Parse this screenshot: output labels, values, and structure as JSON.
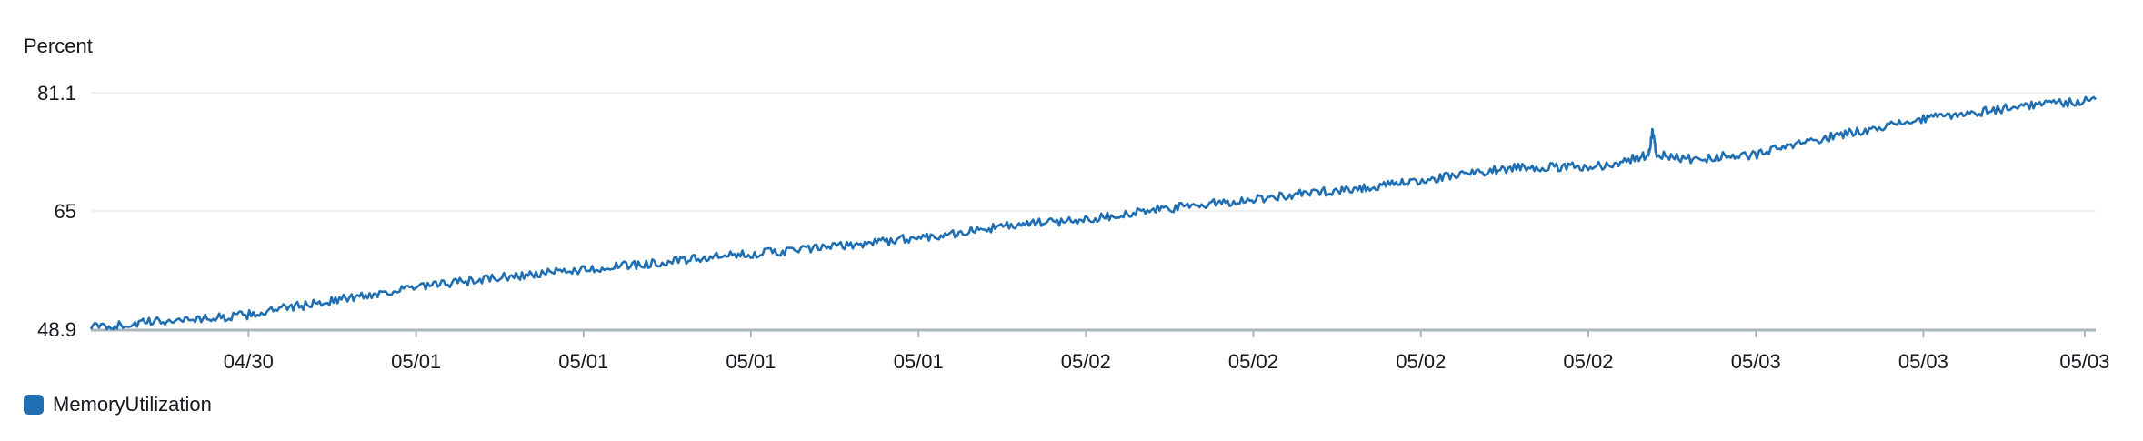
{
  "chart_data": {
    "type": "line",
    "ylabel": "Percent",
    "ylim": [
      48.9,
      81.1
    ],
    "yticks": [
      {
        "value": 48.9,
        "label": "48.9"
      },
      {
        "value": 65,
        "label": "65"
      },
      {
        "value": 81.1,
        "label": "81.1"
      }
    ],
    "xlim": [
      0,
      1
    ],
    "xticks": [
      {
        "x": 0.0786,
        "label": "04/30"
      },
      {
        "x": 0.1622,
        "label": "05/01"
      },
      {
        "x": 0.2457,
        "label": "05/01"
      },
      {
        "x": 0.3292,
        "label": "05/01"
      },
      {
        "x": 0.4128,
        "label": "05/01"
      },
      {
        "x": 0.4963,
        "label": "05/02"
      },
      {
        "x": 0.5798,
        "label": "05/02"
      },
      {
        "x": 0.6634,
        "label": "05/02"
      },
      {
        "x": 0.7469,
        "label": "05/02"
      },
      {
        "x": 0.8305,
        "label": "05/03"
      },
      {
        "x": 0.914,
        "label": "05/03"
      },
      {
        "x": 0.9945,
        "label": "05/03"
      }
    ],
    "grid": true,
    "legend_position": "bottom-left",
    "series": [
      {
        "name": "MemoryUtilization",
        "color": "#1f6fb2",
        "points": [
          [
            0.0,
            49.2
          ],
          [
            0.01,
            49.3
          ],
          [
            0.02,
            49.6
          ],
          [
            0.03,
            49.9
          ],
          [
            0.04,
            50.1
          ],
          [
            0.05,
            50.3
          ],
          [
            0.06,
            50.4
          ],
          [
            0.07,
            50.6
          ],
          [
            0.08,
            50.9
          ],
          [
            0.09,
            51.4
          ],
          [
            0.1,
            51.9
          ],
          [
            0.11,
            52.3
          ],
          [
            0.12,
            52.8
          ],
          [
            0.13,
            53.2
          ],
          [
            0.14,
            53.6
          ],
          [
            0.15,
            54.1
          ],
          [
            0.16,
            54.5
          ],
          [
            0.17,
            54.8
          ],
          [
            0.18,
            55.2
          ],
          [
            0.19,
            55.5
          ],
          [
            0.2,
            55.8
          ],
          [
            0.21,
            56.1
          ],
          [
            0.22,
            56.3
          ],
          [
            0.23,
            56.6
          ],
          [
            0.24,
            56.9
          ],
          [
            0.25,
            57.1
          ],
          [
            0.26,
            57.4
          ],
          [
            0.27,
            57.6
          ],
          [
            0.28,
            57.9
          ],
          [
            0.29,
            58.1
          ],
          [
            0.3,
            58.4
          ],
          [
            0.31,
            58.7
          ],
          [
            0.32,
            58.9
          ],
          [
            0.33,
            59.2
          ],
          [
            0.34,
            59.4
          ],
          [
            0.35,
            59.6
          ],
          [
            0.36,
            59.9
          ],
          [
            0.37,
            60.1
          ],
          [
            0.38,
            60.4
          ],
          [
            0.39,
            60.7
          ],
          [
            0.4,
            61.0
          ],
          [
            0.41,
            61.3
          ],
          [
            0.42,
            61.6
          ],
          [
            0.43,
            61.9
          ],
          [
            0.44,
            62.3
          ],
          [
            0.45,
            62.7
          ],
          [
            0.46,
            63.0
          ],
          [
            0.47,
            63.3
          ],
          [
            0.48,
            63.5
          ],
          [
            0.49,
            63.7
          ],
          [
            0.5,
            64.0
          ],
          [
            0.51,
            64.4
          ],
          [
            0.52,
            64.7
          ],
          [
            0.53,
            65.1
          ],
          [
            0.54,
            65.4
          ],
          [
            0.55,
            65.7
          ],
          [
            0.56,
            66.0
          ],
          [
            0.57,
            66.3
          ],
          [
            0.58,
            66.6
          ],
          [
            0.59,
            66.9
          ],
          [
            0.6,
            67.2
          ],
          [
            0.61,
            67.5
          ],
          [
            0.62,
            67.8
          ],
          [
            0.63,
            68.0
          ],
          [
            0.64,
            68.3
          ],
          [
            0.65,
            68.6
          ],
          [
            0.66,
            69.0
          ],
          [
            0.67,
            69.4
          ],
          [
            0.68,
            69.8
          ],
          [
            0.69,
            70.2
          ],
          [
            0.7,
            70.6
          ],
          [
            0.71,
            70.9
          ],
          [
            0.72,
            71.0
          ],
          [
            0.73,
            70.9
          ],
          [
            0.74,
            71.0
          ],
          [
            0.75,
            71.1
          ],
          [
            0.76,
            71.4
          ],
          [
            0.77,
            72.2
          ],
          [
            0.777,
            72.6
          ],
          [
            0.779,
            76.0
          ],
          [
            0.781,
            72.6
          ],
          [
            0.79,
            72.3
          ],
          [
            0.8,
            72.0
          ],
          [
            0.81,
            72.3
          ],
          [
            0.82,
            72.6
          ],
          [
            0.83,
            72.6
          ],
          [
            0.84,
            73.3
          ],
          [
            0.85,
            74.0
          ],
          [
            0.86,
            74.6
          ],
          [
            0.87,
            75.2
          ],
          [
            0.88,
            75.8
          ],
          [
            0.89,
            76.3
          ],
          [
            0.9,
            76.8
          ],
          [
            0.91,
            77.3
          ],
          [
            0.92,
            77.7
          ],
          [
            0.93,
            78.1
          ],
          [
            0.94,
            78.4
          ],
          [
            0.95,
            78.8
          ],
          [
            0.96,
            79.2
          ],
          [
            0.97,
            79.5
          ],
          [
            0.98,
            79.7
          ],
          [
            0.99,
            79.9
          ],
          [
            1.0,
            80.2
          ]
        ]
      }
    ]
  }
}
